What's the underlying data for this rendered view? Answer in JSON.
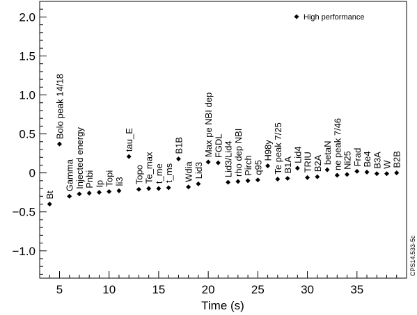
{
  "chart_data": {
    "type": "scatter",
    "xlabel": "Time (s)",
    "ylabel": "",
    "xlim": [
      3,
      40
    ],
    "ylim": [
      -1.35,
      2.2
    ],
    "x_ticks": [
      5,
      10,
      15,
      20,
      25,
      30,
      35
    ],
    "y_ticks": [
      -1.0,
      -0.5,
      0,
      0.5,
      1.0,
      1.5,
      2.0
    ],
    "y_tick_labels": [
      "−1.0",
      "−0.5",
      "0",
      "0.5",
      "1.0",
      "1.5",
      "2.0"
    ],
    "legend": "top-right",
    "grid": false,
    "series": [
      {
        "name": "High performance",
        "marker": "diamond",
        "color": "#000000",
        "points": [
          {
            "x": 4,
            "y": -0.4,
            "label": "Bt"
          },
          {
            "x": 5,
            "y": 0.37,
            "label": "Bolo peak 14/18"
          },
          {
            "x": 6,
            "y": -0.3,
            "label": "Gamma"
          },
          {
            "x": 7,
            "y": -0.27,
            "label": "Injected energy"
          },
          {
            "x": 8,
            "y": -0.26,
            "label": "Pnbi"
          },
          {
            "x": 9,
            "y": -0.25,
            "label": "Ip"
          },
          {
            "x": 10,
            "y": -0.24,
            "label": "Topi"
          },
          {
            "x": 11,
            "y": -0.23,
            "label": "li3"
          },
          {
            "x": 12,
            "y": 0.21,
            "label": "tau_E"
          },
          {
            "x": 13,
            "y": -0.21,
            "label": "Topo"
          },
          {
            "x": 14,
            "y": -0.2,
            "label": "Te_max"
          },
          {
            "x": 15,
            "y": -0.2,
            "label": "t_me"
          },
          {
            "x": 16,
            "y": -0.19,
            "label": "t_ms"
          },
          {
            "x": 17,
            "y": 0.18,
            "label": "B1B"
          },
          {
            "x": 18,
            "y": -0.18,
            "label": "Wdia"
          },
          {
            "x": 19,
            "y": -0.14,
            "label": "Lid3"
          },
          {
            "x": 20,
            "y": 0.14,
            "label": "Max pe NBI dep"
          },
          {
            "x": 21,
            "y": 0.13,
            "label": "FGDL"
          },
          {
            "x": 22,
            "y": -0.12,
            "label": "Lid3/Lid4"
          },
          {
            "x": 23,
            "y": -0.11,
            "label": "rho dep NBI"
          },
          {
            "x": 24,
            "y": -0.1,
            "label": "Pirch"
          },
          {
            "x": 25,
            "y": -0.09,
            "label": "q95"
          },
          {
            "x": 26,
            "y": 0.09,
            "label": "H98y"
          },
          {
            "x": 27,
            "y": -0.08,
            "label": "Te peak 7/25"
          },
          {
            "x": 28,
            "y": -0.07,
            "label": "B1A"
          },
          {
            "x": 29,
            "y": 0.06,
            "label": "Lid4"
          },
          {
            "x": 30,
            "y": -0.06,
            "label": "TRIU"
          },
          {
            "x": 31,
            "y": -0.05,
            "label": "B2A"
          },
          {
            "x": 32,
            "y": 0.04,
            "label": "betaN"
          },
          {
            "x": 33,
            "y": -0.03,
            "label": "ne peak 7/46"
          },
          {
            "x": 34,
            "y": -0.02,
            "label": "Ni25"
          },
          {
            "x": 35,
            "y": 0.02,
            "label": "Frad"
          },
          {
            "x": 36,
            "y": 0.01,
            "label": "Be4"
          },
          {
            "x": 37,
            "y": -0.01,
            "label": "B3A"
          },
          {
            "x": 38,
            "y": -0.01,
            "label": "W"
          },
          {
            "x": 39,
            "y": 0.0,
            "label": "B2B"
          }
        ]
      }
    ],
    "side_note": "CPS14.533-5c"
  }
}
